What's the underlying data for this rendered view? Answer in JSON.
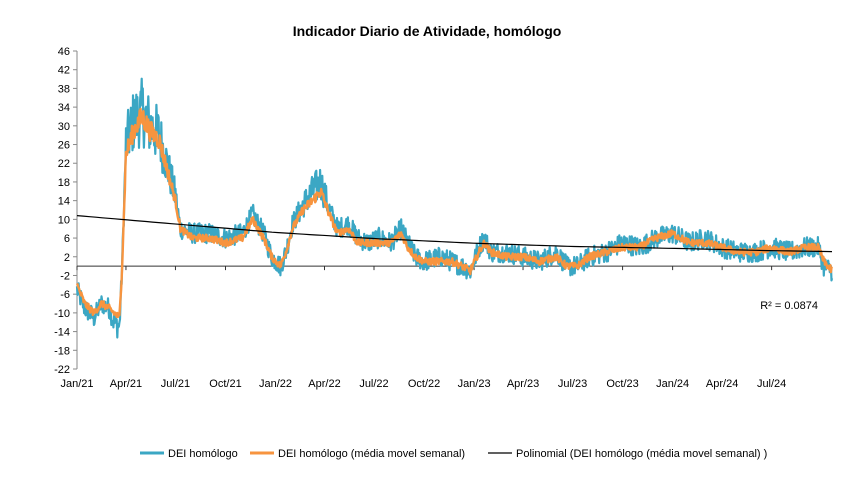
{
  "chart_data": {
    "type": "line",
    "title": "Indicador Diario de Atividade, homólogo",
    "xlabel": "",
    "ylabel": "",
    "ylim": [
      -22,
      46
    ],
    "yticks": [
      46,
      42,
      38,
      34,
      30,
      26,
      22,
      18,
      14,
      10,
      6,
      2,
      -2,
      -6,
      -10,
      -14,
      -18,
      -22
    ],
    "x_start": "2021-01-01",
    "x_end": "2024-10-20",
    "xtick_labels": [
      "Jan/21",
      "Apr/21",
      "Jul/21",
      "Oct/21",
      "Jan/22",
      "Apr/22",
      "Jul/22",
      "Oct/22",
      "Jan/23",
      "Apr/23",
      "Jul/23",
      "Oct/23",
      "Jan/24",
      "Apr/24",
      "Jul/24"
    ],
    "xtick_dates": [
      "2021-01-01",
      "2021-04-01",
      "2021-07-01",
      "2021-10-01",
      "2022-01-01",
      "2022-04-01",
      "2022-07-01",
      "2022-10-01",
      "2023-01-01",
      "2023-04-01",
      "2023-07-01",
      "2023-10-01",
      "2024-01-01",
      "2024-04-01",
      "2024-07-01"
    ],
    "grid": false,
    "legend_position": "bottom",
    "annotation": "R² = 0.0874",
    "series": [
      {
        "name": "DEI homólogo",
        "color": "#3BA7C4",
        "anchors": [
          [
            "2021-01-01",
            -5
          ],
          [
            "2021-01-15",
            -9
          ],
          [
            "2021-02-01",
            -11
          ],
          [
            "2021-02-15",
            -8
          ],
          [
            "2021-03-01",
            -9
          ],
          [
            "2021-03-10",
            -12
          ],
          [
            "2021-03-20",
            -13
          ],
          [
            "2021-03-25",
            0
          ],
          [
            "2021-04-01",
            26
          ],
          [
            "2021-04-15",
            31
          ],
          [
            "2021-05-01",
            33
          ],
          [
            "2021-05-15",
            30
          ],
          [
            "2021-06-01",
            28
          ],
          [
            "2021-06-15",
            22
          ],
          [
            "2021-07-01",
            15
          ],
          [
            "2021-07-10",
            8
          ],
          [
            "2021-08-01",
            7
          ],
          [
            "2021-09-01",
            7
          ],
          [
            "2021-10-01",
            6
          ],
          [
            "2021-11-01",
            7
          ],
          [
            "2021-11-20",
            11
          ],
          [
            "2021-12-10",
            7
          ],
          [
            "2021-12-25",
            2
          ],
          [
            "2022-01-10",
            0
          ],
          [
            "2022-01-20",
            3
          ],
          [
            "2022-02-01",
            9
          ],
          [
            "2022-02-20",
            13
          ],
          [
            "2022-03-10",
            16
          ],
          [
            "2022-03-25",
            18
          ],
          [
            "2022-04-10",
            12
          ],
          [
            "2022-04-25",
            8
          ],
          [
            "2022-05-15",
            9
          ],
          [
            "2022-06-01",
            6
          ],
          [
            "2022-06-20",
            5
          ],
          [
            "2022-07-10",
            6
          ],
          [
            "2022-08-01",
            5
          ],
          [
            "2022-08-20",
            8
          ],
          [
            "2022-09-01",
            5
          ],
          [
            "2022-09-15",
            2
          ],
          [
            "2022-10-01",
            1
          ],
          [
            "2022-11-01",
            2
          ],
          [
            "2022-11-20",
            1
          ],
          [
            "2022-12-10",
            0
          ],
          [
            "2022-12-25",
            -1
          ],
          [
            "2023-01-10",
            4
          ],
          [
            "2023-01-20",
            6
          ],
          [
            "2023-02-01",
            3
          ],
          [
            "2023-03-01",
            3
          ],
          [
            "2023-04-01",
            2
          ],
          [
            "2023-05-01",
            1
          ],
          [
            "2023-06-01",
            3
          ],
          [
            "2023-06-20",
            0
          ],
          [
            "2023-07-10",
            0
          ],
          [
            "2023-08-01",
            2
          ],
          [
            "2023-09-01",
            3
          ],
          [
            "2023-10-01",
            5
          ],
          [
            "2023-11-01",
            4
          ],
          [
            "2023-12-01",
            6
          ],
          [
            "2024-01-01",
            7
          ],
          [
            "2024-02-01",
            5
          ],
          [
            "2024-03-01",
            6
          ],
          [
            "2024-04-01",
            4
          ],
          [
            "2024-05-01",
            3
          ],
          [
            "2024-06-01",
            3
          ],
          [
            "2024-07-01",
            4
          ],
          [
            "2024-08-01",
            3
          ],
          [
            "2024-09-01",
            4
          ],
          [
            "2024-09-25",
            4
          ],
          [
            "2024-10-05",
            0
          ],
          [
            "2024-10-20",
            -1
          ]
        ]
      },
      {
        "name": "DEI homólogo (média movel semanal)",
        "color": "#F7943F",
        "anchors": [
          [
            "2021-01-01",
            -4
          ],
          [
            "2021-01-15",
            -8
          ],
          [
            "2021-02-01",
            -10
          ],
          [
            "2021-02-15",
            -8
          ],
          [
            "2021-03-01",
            -9
          ],
          [
            "2021-03-10",
            -10
          ],
          [
            "2021-03-20",
            -11
          ],
          [
            "2021-03-25",
            0
          ],
          [
            "2021-04-01",
            24
          ],
          [
            "2021-04-15",
            29
          ],
          [
            "2021-05-01",
            32
          ],
          [
            "2021-05-15",
            29
          ],
          [
            "2021-06-01",
            27
          ],
          [
            "2021-06-15",
            21
          ],
          [
            "2021-07-01",
            14
          ],
          [
            "2021-07-10",
            8
          ],
          [
            "2021-08-01",
            6
          ],
          [
            "2021-09-01",
            6
          ],
          [
            "2021-10-01",
            5
          ],
          [
            "2021-11-01",
            6
          ],
          [
            "2021-11-20",
            10
          ],
          [
            "2021-12-10",
            6
          ],
          [
            "2021-12-25",
            2
          ],
          [
            "2022-01-10",
            0
          ],
          [
            "2022-01-20",
            3
          ],
          [
            "2022-02-01",
            8
          ],
          [
            "2022-02-20",
            12
          ],
          [
            "2022-03-10",
            14
          ],
          [
            "2022-03-25",
            16
          ],
          [
            "2022-04-10",
            11
          ],
          [
            "2022-04-25",
            7
          ],
          [
            "2022-05-15",
            8
          ],
          [
            "2022-06-01",
            5
          ],
          [
            "2022-06-20",
            5
          ],
          [
            "2022-07-10",
            5
          ],
          [
            "2022-08-01",
            5
          ],
          [
            "2022-08-20",
            7
          ],
          [
            "2022-09-01",
            4
          ],
          [
            "2022-09-15",
            2
          ],
          [
            "2022-10-01",
            1
          ],
          [
            "2022-11-01",
            1
          ],
          [
            "2022-11-20",
            1
          ],
          [
            "2022-12-10",
            0
          ],
          [
            "2022-12-25",
            -1
          ],
          [
            "2023-01-10",
            3
          ],
          [
            "2023-01-20",
            5
          ],
          [
            "2023-02-01",
            3
          ],
          [
            "2023-03-01",
            2
          ],
          [
            "2023-04-01",
            2
          ],
          [
            "2023-05-01",
            1
          ],
          [
            "2023-06-01",
            2
          ],
          [
            "2023-06-20",
            0
          ],
          [
            "2023-07-10",
            0
          ],
          [
            "2023-08-01",
            2
          ],
          [
            "2023-09-01",
            3
          ],
          [
            "2023-10-01",
            4
          ],
          [
            "2023-11-01",
            4
          ],
          [
            "2023-12-01",
            6
          ],
          [
            "2024-01-01",
            7
          ],
          [
            "2024-02-01",
            5
          ],
          [
            "2024-03-01",
            5
          ],
          [
            "2024-04-01",
            4
          ],
          [
            "2024-05-01",
            3
          ],
          [
            "2024-06-01",
            3
          ],
          [
            "2024-07-01",
            4
          ],
          [
            "2024-08-01",
            3
          ],
          [
            "2024-09-01",
            4
          ],
          [
            "2024-09-25",
            4
          ],
          [
            "2024-10-05",
            1
          ],
          [
            "2024-10-20",
            -1
          ]
        ]
      },
      {
        "name": "Polinomial (DEI homólogo (média movel semanal) )",
        "color": "#000000",
        "anchors": [
          [
            "2021-01-01",
            10.8
          ],
          [
            "2021-07-01",
            9.0
          ],
          [
            "2022-01-01",
            7.2
          ],
          [
            "2022-07-01",
            5.9
          ],
          [
            "2023-01-01",
            4.9
          ],
          [
            "2023-07-01",
            4.2
          ],
          [
            "2024-01-01",
            3.8
          ],
          [
            "2024-07-01",
            3.3
          ],
          [
            "2024-10-20",
            3.1
          ]
        ]
      }
    ]
  }
}
